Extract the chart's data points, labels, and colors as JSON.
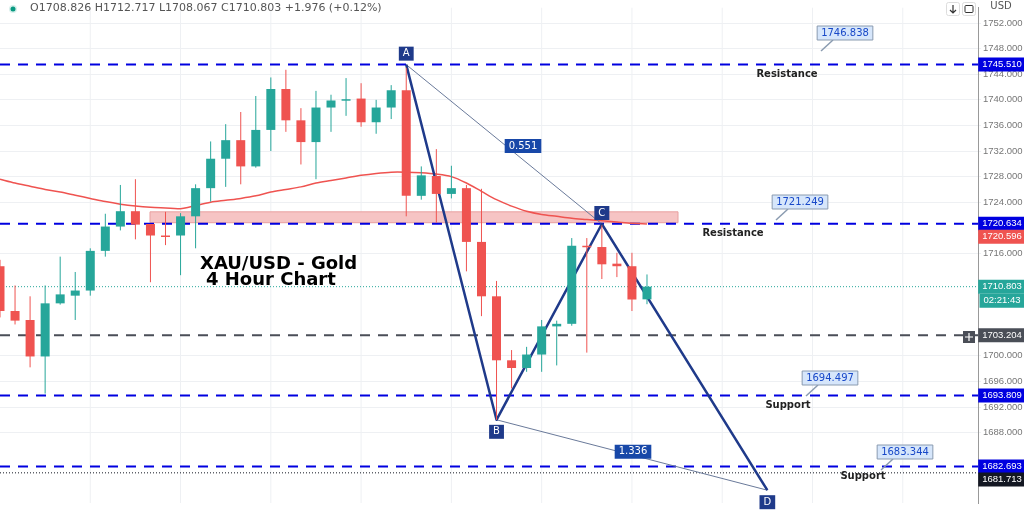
{
  "chart_data": {
    "type": "candlestick",
    "title": "XAU/USD - Gold",
    "subtitle": "4 Hour Chart",
    "ylabel": "USD",
    "categories": [
      null,
      null,
      null,
      null,
      null,
      null,
      null,
      null,
      null,
      null,
      null,
      null,
      null,
      null,
      null,
      null,
      null,
      null,
      null,
      null,
      null,
      null,
      null,
      null,
      null,
      null,
      null,
      null,
      null,
      null,
      null,
      null,
      null,
      null,
      null,
      null,
      null,
      null,
      null,
      null,
      null,
      null,
      null,
      null,
      null,
      null,
      null,
      null,
      null,
      null,
      null,
      null,
      null,
      null,
      null,
      null,
      null,
      null,
      null,
      null,
      null,
      null,
      null,
      null,
      null,
      null
    ],
    "colors": [
      "#ef5350",
      "#ef5350",
      "#ef5350",
      "#26a69a",
      "#26a69a",
      "#26a69a",
      "#26a69a",
      "#26a69a",
      "#26a69a",
      "#ef5350",
      "#ef5350",
      "#ef5350",
      "#26a69a",
      "#26a69a",
      "#26a69a",
      "#26a69a",
      "#ef5350",
      "#26a69a",
      "#26a69a",
      "#ef5350",
      "#ef5350",
      "#26a69a",
      "#26a69a",
      "#26a69a",
      "#ef5350",
      "#26a69a",
      "#26a69a",
      "#ef5350",
      "#26a69a",
      "#ef5350",
      "#26a69a",
      "#ef5350",
      "#ef5350",
      "#ef5350",
      "#ef5350",
      "#26a69a",
      "#26a69a",
      "#26a69a",
      "#26a69a",
      "#ef5350",
      "#ef5350",
      "#ef5350",
      "#ef5350",
      "#26a69a",
      null,
      null,
      null,
      null,
      null,
      null,
      null,
      null,
      null,
      null,
      null,
      null,
      null,
      null,
      null,
      null,
      null,
      null,
      null,
      null,
      null,
      null
    ],
    "ohlc": [
      [
        1714.0,
        1715.0,
        1706.0,
        1707.0
      ],
      [
        1707.0,
        1711.0,
        1704.9,
        1705.5
      ],
      [
        1705.6,
        1709.3,
        1698.2,
        1699.9
      ],
      [
        1699.9,
        1711.0,
        1694.1,
        1708.2
      ],
      [
        1708.2,
        1715.5,
        1708.0,
        1709.6
      ],
      [
        1709.4,
        1713.1,
        1705.6,
        1710.2
      ],
      [
        1710.2,
        1716.8,
        1709.4,
        1716.4
      ],
      [
        1716.4,
        1722.2,
        1715.5,
        1720.2
      ],
      [
        1720.2,
        1726.7,
        1719.6,
        1722.6
      ],
      [
        1722.6,
        1727.6,
        1718.2,
        1720.5
      ],
      [
        1720.6,
        1720.6,
        1711.5,
        1718.8
      ],
      [
        1718.8,
        1722.5,
        1717.3,
        1718.8
      ],
      [
        1718.8,
        1722.3,
        1712.6,
        1721.8
      ],
      [
        1721.8,
        1726.8,
        1716.8,
        1726.2
      ],
      [
        1726.2,
        1733.5,
        1724.1,
        1730.8
      ],
      [
        1730.8,
        1736.2,
        1726.4,
        1733.7
      ],
      [
        1733.7,
        1738.1,
        1726.8,
        1729.6
      ],
      [
        1729.6,
        1740.6,
        1729.4,
        1735.3
      ],
      [
        1735.3,
        1743.5,
        1732.0,
        1741.7
      ],
      [
        1741.7,
        1744.7,
        1735.0,
        1736.8
      ],
      [
        1736.8,
        1738.7,
        1729.9,
        1733.4
      ],
      [
        1733.4,
        1741.4,
        1727.6,
        1738.8
      ],
      [
        1738.8,
        1740.8,
        1735.0,
        1739.9
      ],
      [
        1739.9,
        1743.4,
        1737.5,
        1740.1
      ],
      [
        1740.2,
        1742.6,
        1735.8,
        1736.5
      ],
      [
        1736.5,
        1740.0,
        1734.7,
        1738.8
      ],
      [
        1738.8,
        1742.3,
        1737.0,
        1741.5
      ],
      [
        1741.5,
        1745.0,
        1721.8,
        1725.0
      ],
      [
        1725.0,
        1729.6,
        1724.4,
        1728.2
      ],
      [
        1728.1,
        1732.3,
        1720.8,
        1725.3
      ],
      [
        1725.3,
        1729.7,
        1724.6,
        1726.2
      ],
      [
        1726.2,
        1726.7,
        1713.2,
        1717.8
      ],
      [
        1717.8,
        1726.1,
        1706.2,
        1709.3
      ],
      [
        1709.3,
        1711.7,
        1690.0,
        1699.3
      ],
      [
        1699.3,
        1700.9,
        1694.9,
        1698.1
      ],
      [
        1698.1,
        1701.4,
        1697.5,
        1700.2
      ],
      [
        1700.2,
        1705.6,
        1697.5,
        1704.6
      ],
      [
        1704.6,
        1705.5,
        1698.5,
        1705.0
      ],
      [
        1705.0,
        1718.4,
        1704.7,
        1717.2
      ],
      [
        1717.2,
        1718.4,
        1700.5,
        1717.0
      ],
      [
        1717.0,
        1720.4,
        1712.0,
        1714.3
      ],
      [
        1714.4,
        1716.1,
        1712.3,
        1714.0
      ],
      [
        1714.0,
        1716.1,
        1707.0,
        1708.8
      ],
      [
        1708.826,
        1712.717,
        1708.067,
        1710.803
      ],
      null,
      null,
      null,
      null,
      null,
      null,
      null,
      null,
      null,
      null,
      null,
      null,
      null,
      null,
      null,
      null,
      null,
      null,
      null,
      null,
      null,
      null
    ],
    "series": [
      {
        "type": "line",
        "color": "#ef5350",
        "values": [
          1727.6,
          1727.0,
          1726.5,
          1726.0,
          1725.6,
          1725.1,
          1724.6,
          1724.1,
          1723.7,
          1723.4,
          1723.2,
          1723.1,
          1723.0,
          null,
          1724.0,
          1724.3,
          1724.6,
          1725.0,
          1725.6,
          1726.0,
          1726.4,
          1727.0,
          1727.4,
          1727.8,
          1728.2,
          1728.5,
          1728.7,
          1728.7,
          1728.6,
          1728.4,
          1728.0,
          1727.0,
          1725.7,
          1724.4,
          1723.4,
          1722.6,
          1722.1,
          1721.8,
          1721.5,
          1721.3,
          null,
          1720.9,
          1720.7,
          1720.6,
          null,
          null,
          null,
          null,
          null,
          null,
          null,
          null,
          null,
          null,
          null,
          null,
          null,
          null,
          null,
          null,
          null,
          null,
          null,
          null,
          null,
          null
        ]
      },
      {
        "type": "line",
        "color": "#1f3a8a",
        "values": [
          null,
          null,
          null,
          null,
          null,
          null,
          null,
          null,
          null,
          null,
          null,
          null,
          null,
          null,
          null,
          null,
          null,
          null,
          null,
          null,
          null,
          null,
          null,
          null,
          null,
          null,
          null,
          1745.5,
          null,
          null,
          null,
          null,
          null,
          1690.0,
          null,
          null,
          null,
          null,
          null,
          null,
          1720.6,
          null,
          null,
          null,
          null,
          null,
          null,
          null,
          null,
          null,
          null,
          1679.0,
          null,
          null,
          null,
          null,
          null,
          null,
          null,
          null,
          null,
          null,
          null,
          null,
          null,
          null
        ],
        "value_labels": [
          null,
          null,
          null,
          null,
          null,
          null,
          null,
          null,
          null,
          null,
          null,
          null,
          null,
          null,
          null,
          null,
          null,
          null,
          null,
          null,
          null,
          null,
          null,
          null,
          null,
          null,
          null,
          "A",
          null,
          null,
          null,
          null,
          null,
          "B",
          null,
          null,
          null,
          null,
          null,
          null,
          "C",
          null,
          null,
          null,
          null,
          null,
          null,
          null,
          null,
          null,
          null,
          "D",
          null,
          null,
          null,
          null,
          null,
          null,
          null,
          null,
          null,
          null,
          null,
          null,
          null,
          null
        ]
      },
      {
        "type": "line",
        "color": "#6a7a9a",
        "values": [
          null,
          null,
          null,
          null,
          null,
          null,
          null,
          null,
          null,
          null,
          null,
          null,
          null,
          null,
          null,
          null,
          null,
          null,
          null,
          null,
          null,
          null,
          null,
          null,
          null,
          null,
          null,
          1745.5,
          null,
          null,
          null,
          null,
          null,
          null,
          null,
          null,
          null,
          null,
          null,
          null,
          1720.6,
          null,
          null,
          null,
          null,
          null,
          null,
          null,
          null,
          null,
          null,
          null,
          null,
          null,
          null,
          null,
          null,
          null,
          null,
          null,
          null,
          null,
          null,
          null,
          null,
          null
        ]
      },
      {
        "type": "line",
        "color": "#6a7a9a",
        "values": [
          null,
          null,
          null,
          null,
          null,
          null,
          null,
          null,
          null,
          null,
          null,
          null,
          null,
          null,
          null,
          null,
          null,
          null,
          null,
          null,
          null,
          null,
          null,
          null,
          null,
          null,
          null,
          null,
          null,
          null,
          null,
          null,
          null,
          1690.0,
          null,
          null,
          null,
          null,
          null,
          null,
          null,
          null,
          null,
          null,
          null,
          null,
          null,
          null,
          null,
          null,
          null,
          1679.0,
          null,
          null,
          null,
          null,
          null,
          null,
          null,
          null,
          null,
          null,
          null,
          null,
          null,
          null
        ]
      }
    ],
    "ylim": [
      1677,
      1754.4
    ],
    "yticks": [
      {
        "value": 1688,
        "label": "1688.000"
      },
      {
        "value": 1692,
        "label": "1692.000"
      },
      {
        "value": 1696,
        "label": "1696.000"
      },
      {
        "value": 1700,
        "label": "1700.000"
      },
      {
        "value": 1716,
        "label": "1716.000"
      },
      {
        "value": 1724,
        "label": "1724.000"
      },
      {
        "value": 1728,
        "label": "1728.000"
      },
      {
        "value": 1732,
        "label": "1732.000"
      },
      {
        "value": 1736,
        "label": "1736.000"
      },
      {
        "value": 1740,
        "label": "1740.000"
      },
      {
        "value": 1744,
        "label": "1744.000"
      },
      {
        "value": 1748,
        "label": "1748.000"
      },
      {
        "value": 1752,
        "label": "1752.000"
      }
    ],
    "grid": true,
    "bands": [
      {
        "axis": "y",
        "from": 1720.8,
        "to": 1722.5,
        "color": "#f6c4c4"
      }
    ],
    "ref_lines": [
      {
        "axis": "y",
        "value": 1745.51,
        "label": "Resistance",
        "color": "#0000e0",
        "line_style": "dashed"
      },
      {
        "axis": "y",
        "value": 1720.634,
        "label": "Resistance",
        "color": "#0000e0",
        "line_style": "dashed"
      },
      {
        "axis": "y",
        "value": 1693.809,
        "label": "Support",
        "color": "#0000e0",
        "line_style": "dashed"
      },
      {
        "axis": "y",
        "value": 1682.693,
        "label": "Support",
        "color": "#0000e0",
        "line_style": "dashed"
      },
      {
        "axis": "y",
        "value": 1710.803,
        "label": null,
        "color": "#26a69a",
        "line_style": "dotted"
      },
      {
        "axis": "y",
        "value": 1703.204,
        "label": null,
        "color": "#4a4e57",
        "line_style": "dashed"
      },
      {
        "axis": "y",
        "value": 1681.713,
        "label": null,
        "color": "#131722",
        "line_style": "dotted"
      }
    ],
    "annotations": [
      "O1708.826 H1712.717 L1708.067 C1710.803 +1.976 (+0.12%)",
      {
        "text": "0.551",
        "y": 1732.8
      },
      {
        "text": "1.336",
        "y": 1685.0
      },
      "1746.838",
      "1721.249",
      "1694.497",
      "1683.344",
      "02:21:43",
      "1745.510",
      "1720.634",
      "1693.809",
      "1682.693",
      "1710.803",
      "1703.204",
      "1681.713",
      "1720.596"
    ]
  }
}
